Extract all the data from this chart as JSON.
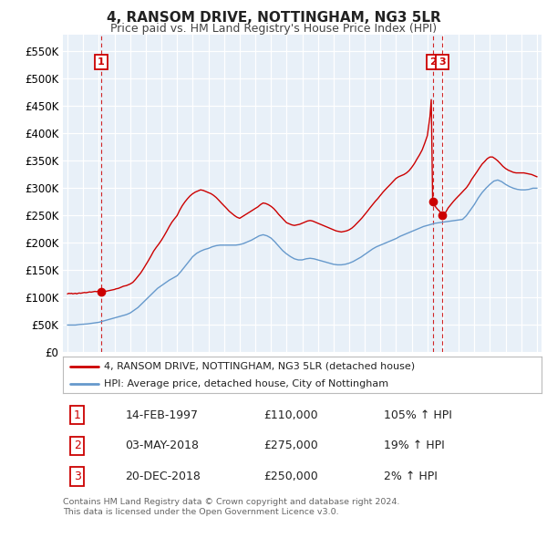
{
  "title": "4, RANSOM DRIVE, NOTTINGHAM, NG3 5LR",
  "subtitle": "Price paid vs. HM Land Registry's House Price Index (HPI)",
  "ylabel_ticks": [
    "£0",
    "£50K",
    "£100K",
    "£150K",
    "£200K",
    "£250K",
    "£300K",
    "£350K",
    "£400K",
    "£450K",
    "£500K",
    "£550K"
  ],
  "ytick_values": [
    0,
    50000,
    100000,
    150000,
    200000,
    250000,
    300000,
    350000,
    400000,
    450000,
    500000,
    550000
  ],
  "ylim": [
    0,
    580000
  ],
  "xlim_start": 1994.7,
  "xlim_end": 2025.3,
  "sale_dates_num": [
    1997.12,
    2018.34,
    2018.97
  ],
  "sale_prices": [
    110000,
    275000,
    250000
  ],
  "sale_labels": [
    "1",
    "2",
    "3"
  ],
  "sale_date_strs": [
    "14-FEB-1997",
    "03-MAY-2018",
    "20-DEC-2018"
  ],
  "sale_price_strs": [
    "£110,000",
    "£275,000",
    "£250,000"
  ],
  "sale_hpi_strs": [
    "105% ↑ HPI",
    "19% ↑ HPI",
    "2% ↑ HPI"
  ],
  "legend_line1": "4, RANSOM DRIVE, NOTTINGHAM, NG3 5LR (detached house)",
  "legend_line2": "HPI: Average price, detached house, City of Nottingham",
  "footer1": "Contains HM Land Registry data © Crown copyright and database right 2024.",
  "footer2": "This data is licensed under the Open Government Licence v3.0.",
  "red_color": "#cc0000",
  "blue_color": "#6699cc",
  "bg_color": "#e8f0f8",
  "grid_color": "#ffffff",
  "hpi_data": [
    [
      1995.0,
      50000
    ],
    [
      1995.25,
      50000
    ],
    [
      1995.5,
      50000
    ],
    [
      1995.75,
      51000
    ],
    [
      1996.0,
      51500
    ],
    [
      1996.25,
      52000
    ],
    [
      1996.5,
      53000
    ],
    [
      1996.75,
      54000
    ],
    [
      1997.0,
      55000
    ],
    [
      1997.25,
      57000
    ],
    [
      1997.5,
      59000
    ],
    [
      1997.75,
      61000
    ],
    [
      1998.0,
      63000
    ],
    [
      1998.25,
      65000
    ],
    [
      1998.5,
      67000
    ],
    [
      1998.75,
      69000
    ],
    [
      1999.0,
      72000
    ],
    [
      1999.25,
      77000
    ],
    [
      1999.5,
      82000
    ],
    [
      1999.75,
      89000
    ],
    [
      2000.0,
      96000
    ],
    [
      2000.25,
      103000
    ],
    [
      2000.5,
      110000
    ],
    [
      2000.75,
      117000
    ],
    [
      2001.0,
      122000
    ],
    [
      2001.25,
      127000
    ],
    [
      2001.5,
      132000
    ],
    [
      2001.75,
      136000
    ],
    [
      2002.0,
      140000
    ],
    [
      2002.25,
      148000
    ],
    [
      2002.5,
      157000
    ],
    [
      2002.75,
      166000
    ],
    [
      2003.0,
      175000
    ],
    [
      2003.25,
      181000
    ],
    [
      2003.5,
      185000
    ],
    [
      2003.75,
      188000
    ],
    [
      2004.0,
      190000
    ],
    [
      2004.25,
      193000
    ],
    [
      2004.5,
      195000
    ],
    [
      2004.75,
      196000
    ],
    [
      2005.0,
      196000
    ],
    [
      2005.25,
      196000
    ],
    [
      2005.5,
      196000
    ],
    [
      2005.75,
      196000
    ],
    [
      2006.0,
      197000
    ],
    [
      2006.25,
      199000
    ],
    [
      2006.5,
      202000
    ],
    [
      2006.75,
      205000
    ],
    [
      2007.0,
      209000
    ],
    [
      2007.25,
      213000
    ],
    [
      2007.5,
      215000
    ],
    [
      2007.75,
      213000
    ],
    [
      2008.0,
      209000
    ],
    [
      2008.25,
      202000
    ],
    [
      2008.5,
      194000
    ],
    [
      2008.75,
      186000
    ],
    [
      2009.0,
      180000
    ],
    [
      2009.25,
      175000
    ],
    [
      2009.5,
      171000
    ],
    [
      2009.75,
      169000
    ],
    [
      2010.0,
      169000
    ],
    [
      2010.25,
      171000
    ],
    [
      2010.5,
      172000
    ],
    [
      2010.75,
      171000
    ],
    [
      2011.0,
      169000
    ],
    [
      2011.25,
      167000
    ],
    [
      2011.5,
      165000
    ],
    [
      2011.75,
      163000
    ],
    [
      2012.0,
      161000
    ],
    [
      2012.25,
      160000
    ],
    [
      2012.5,
      160000
    ],
    [
      2012.75,
      161000
    ],
    [
      2013.0,
      163000
    ],
    [
      2013.25,
      166000
    ],
    [
      2013.5,
      170000
    ],
    [
      2013.75,
      174000
    ],
    [
      2014.0,
      179000
    ],
    [
      2014.25,
      184000
    ],
    [
      2014.5,
      189000
    ],
    [
      2014.75,
      193000
    ],
    [
      2015.0,
      196000
    ],
    [
      2015.25,
      199000
    ],
    [
      2015.5,
      202000
    ],
    [
      2015.75,
      205000
    ],
    [
      2016.0,
      208000
    ],
    [
      2016.25,
      212000
    ],
    [
      2016.5,
      215000
    ],
    [
      2016.75,
      218000
    ],
    [
      2017.0,
      221000
    ],
    [
      2017.25,
      224000
    ],
    [
      2017.5,
      227000
    ],
    [
      2017.75,
      230000
    ],
    [
      2018.0,
      232000
    ],
    [
      2018.25,
      234000
    ],
    [
      2018.5,
      236000
    ],
    [
      2018.75,
      237000
    ],
    [
      2019.0,
      238000
    ],
    [
      2019.25,
      239000
    ],
    [
      2019.5,
      240000
    ],
    [
      2019.75,
      241000
    ],
    [
      2020.0,
      242000
    ],
    [
      2020.25,
      243000
    ],
    [
      2020.5,
      250000
    ],
    [
      2020.75,
      260000
    ],
    [
      2021.0,
      270000
    ],
    [
      2021.25,
      282000
    ],
    [
      2021.5,
      292000
    ],
    [
      2021.75,
      300000
    ],
    [
      2022.0,
      307000
    ],
    [
      2022.25,
      313000
    ],
    [
      2022.5,
      315000
    ],
    [
      2022.75,
      312000
    ],
    [
      2023.0,
      307000
    ],
    [
      2023.25,
      303000
    ],
    [
      2023.5,
      300000
    ],
    [
      2023.75,
      298000
    ],
    [
      2024.0,
      297000
    ],
    [
      2024.25,
      297000
    ],
    [
      2024.5,
      298000
    ],
    [
      2024.75,
      300000
    ],
    [
      2025.0,
      300000
    ]
  ],
  "price_data": [
    [
      1995.0,
      107000
    ],
    [
      1995.08,
      108000
    ],
    [
      1995.17,
      107500
    ],
    [
      1995.25,
      108000
    ],
    [
      1995.33,
      107000
    ],
    [
      1995.42,
      107500
    ],
    [
      1995.5,
      108000
    ],
    [
      1995.58,
      107000
    ],
    [
      1995.67,
      108000
    ],
    [
      1995.75,
      108500
    ],
    [
      1995.83,
      108000
    ],
    [
      1995.92,
      108500
    ],
    [
      1996.0,
      109000
    ],
    [
      1996.08,
      109500
    ],
    [
      1996.17,
      109000
    ],
    [
      1996.25,
      109500
    ],
    [
      1996.33,
      110000
    ],
    [
      1996.42,
      110500
    ],
    [
      1996.5,
      110000
    ],
    [
      1996.58,
      110500
    ],
    [
      1996.67,
      111000
    ],
    [
      1996.75,
      111500
    ],
    [
      1996.83,
      111000
    ],
    [
      1996.92,
      111500
    ],
    [
      1997.0,
      111000
    ],
    [
      1997.08,
      111000
    ],
    [
      1997.12,
      110000
    ],
    [
      1997.17,
      110000
    ],
    [
      1997.25,
      110500
    ],
    [
      1997.33,
      111000
    ],
    [
      1997.42,
      111500
    ],
    [
      1997.5,
      112000
    ],
    [
      1997.58,
      112500
    ],
    [
      1997.67,
      113000
    ],
    [
      1997.75,
      113500
    ],
    [
      1997.83,
      114000
    ],
    [
      1997.92,
      114500
    ],
    [
      1998.0,
      115000
    ],
    [
      1998.08,
      116000
    ],
    [
      1998.17,
      116500
    ],
    [
      1998.25,
      117000
    ],
    [
      1998.33,
      118000
    ],
    [
      1998.42,
      119000
    ],
    [
      1998.5,
      120000
    ],
    [
      1998.58,
      121000
    ],
    [
      1998.67,
      121500
    ],
    [
      1998.75,
      122000
    ],
    [
      1998.83,
      123000
    ],
    [
      1998.92,
      124000
    ],
    [
      1999.0,
      125000
    ],
    [
      1999.17,
      128000
    ],
    [
      1999.33,
      133000
    ],
    [
      1999.5,
      139000
    ],
    [
      1999.67,
      145000
    ],
    [
      1999.83,
      152000
    ],
    [
      2000.0,
      160000
    ],
    [
      2000.17,
      168000
    ],
    [
      2000.33,
      176000
    ],
    [
      2000.5,
      185000
    ],
    [
      2000.67,
      192000
    ],
    [
      2000.83,
      198000
    ],
    [
      2001.0,
      205000
    ],
    [
      2001.17,
      213000
    ],
    [
      2001.33,
      221000
    ],
    [
      2001.5,
      230000
    ],
    [
      2001.67,
      238000
    ],
    [
      2001.83,
      244000
    ],
    [
      2002.0,
      250000
    ],
    [
      2002.17,
      260000
    ],
    [
      2002.33,
      268000
    ],
    [
      2002.5,
      275000
    ],
    [
      2002.67,
      281000
    ],
    [
      2002.83,
      286000
    ],
    [
      2003.0,
      290000
    ],
    [
      2003.17,
      293000
    ],
    [
      2003.33,
      295000
    ],
    [
      2003.5,
      297000
    ],
    [
      2003.67,
      296000
    ],
    [
      2003.83,
      294000
    ],
    [
      2004.0,
      292000
    ],
    [
      2004.17,
      290000
    ],
    [
      2004.33,
      287000
    ],
    [
      2004.5,
      283000
    ],
    [
      2004.67,
      278000
    ],
    [
      2004.83,
      273000
    ],
    [
      2005.0,
      268000
    ],
    [
      2005.17,
      263000
    ],
    [
      2005.33,
      258000
    ],
    [
      2005.5,
      254000
    ],
    [
      2005.67,
      250000
    ],
    [
      2005.83,
      247000
    ],
    [
      2006.0,
      245000
    ],
    [
      2006.17,
      248000
    ],
    [
      2006.33,
      251000
    ],
    [
      2006.5,
      254000
    ],
    [
      2006.67,
      257000
    ],
    [
      2006.83,
      260000
    ],
    [
      2007.0,
      263000
    ],
    [
      2007.17,
      266000
    ],
    [
      2007.33,
      270000
    ],
    [
      2007.5,
      273000
    ],
    [
      2007.67,
      272000
    ],
    [
      2007.83,
      270000
    ],
    [
      2008.0,
      267000
    ],
    [
      2008.17,
      263000
    ],
    [
      2008.33,
      258000
    ],
    [
      2008.5,
      252000
    ],
    [
      2008.67,
      247000
    ],
    [
      2008.83,
      242000
    ],
    [
      2009.0,
      237000
    ],
    [
      2009.17,
      235000
    ],
    [
      2009.33,
      233000
    ],
    [
      2009.5,
      232000
    ],
    [
      2009.67,
      233000
    ],
    [
      2009.83,
      234000
    ],
    [
      2010.0,
      236000
    ],
    [
      2010.17,
      238000
    ],
    [
      2010.33,
      240000
    ],
    [
      2010.5,
      241000
    ],
    [
      2010.67,
      240000
    ],
    [
      2010.83,
      238000
    ],
    [
      2011.0,
      236000
    ],
    [
      2011.17,
      234000
    ],
    [
      2011.33,
      232000
    ],
    [
      2011.5,
      230000
    ],
    [
      2011.67,
      228000
    ],
    [
      2011.83,
      226000
    ],
    [
      2012.0,
      224000
    ],
    [
      2012.17,
      222000
    ],
    [
      2012.33,
      221000
    ],
    [
      2012.5,
      220000
    ],
    [
      2012.67,
      221000
    ],
    [
      2012.83,
      222000
    ],
    [
      2013.0,
      224000
    ],
    [
      2013.17,
      227000
    ],
    [
      2013.33,
      231000
    ],
    [
      2013.5,
      236000
    ],
    [
      2013.67,
      241000
    ],
    [
      2013.83,
      246000
    ],
    [
      2014.0,
      252000
    ],
    [
      2014.17,
      258000
    ],
    [
      2014.33,
      264000
    ],
    [
      2014.5,
      270000
    ],
    [
      2014.67,
      276000
    ],
    [
      2014.83,
      281000
    ],
    [
      2015.0,
      287000
    ],
    [
      2015.17,
      293000
    ],
    [
      2015.33,
      298000
    ],
    [
      2015.5,
      303000
    ],
    [
      2015.67,
      308000
    ],
    [
      2015.83,
      313000
    ],
    [
      2016.0,
      318000
    ],
    [
      2016.17,
      321000
    ],
    [
      2016.33,
      323000
    ],
    [
      2016.5,
      325000
    ],
    [
      2016.67,
      328000
    ],
    [
      2016.83,
      332000
    ],
    [
      2017.0,
      338000
    ],
    [
      2017.17,
      345000
    ],
    [
      2017.33,
      353000
    ],
    [
      2017.5,
      361000
    ],
    [
      2017.67,
      370000
    ],
    [
      2017.83,
      382000
    ],
    [
      2018.0,
      396000
    ],
    [
      2018.17,
      432000
    ],
    [
      2018.25,
      462000
    ],
    [
      2018.34,
      275000
    ],
    [
      2018.42,
      270000
    ],
    [
      2018.5,
      267000
    ],
    [
      2018.58,
      264000
    ],
    [
      2018.67,
      261000
    ],
    [
      2018.75,
      259000
    ],
    [
      2018.83,
      256000
    ],
    [
      2018.97,
      250000
    ],
    [
      2019.08,
      253000
    ],
    [
      2019.17,
      256000
    ],
    [
      2019.25,
      260000
    ],
    [
      2019.33,
      264000
    ],
    [
      2019.5,
      270000
    ],
    [
      2019.67,
      276000
    ],
    [
      2019.83,
      281000
    ],
    [
      2020.0,
      286000
    ],
    [
      2020.17,
      291000
    ],
    [
      2020.33,
      296000
    ],
    [
      2020.5,
      301000
    ],
    [
      2020.67,
      308000
    ],
    [
      2020.83,
      316000
    ],
    [
      2021.0,
      323000
    ],
    [
      2021.17,
      330000
    ],
    [
      2021.33,
      337000
    ],
    [
      2021.5,
      344000
    ],
    [
      2021.67,
      349000
    ],
    [
      2021.83,
      354000
    ],
    [
      2022.0,
      357000
    ],
    [
      2022.17,
      357000
    ],
    [
      2022.33,
      354000
    ],
    [
      2022.5,
      350000
    ],
    [
      2022.67,
      345000
    ],
    [
      2022.83,
      340000
    ],
    [
      2023.0,
      336000
    ],
    [
      2023.17,
      333000
    ],
    [
      2023.33,
      331000
    ],
    [
      2023.5,
      329000
    ],
    [
      2023.67,
      328000
    ],
    [
      2023.83,
      328000
    ],
    [
      2024.0,
      328000
    ],
    [
      2024.17,
      328000
    ],
    [
      2024.33,
      327000
    ],
    [
      2024.5,
      326000
    ],
    [
      2024.67,
      325000
    ],
    [
      2024.83,
      323000
    ],
    [
      2025.0,
      321000
    ]
  ]
}
